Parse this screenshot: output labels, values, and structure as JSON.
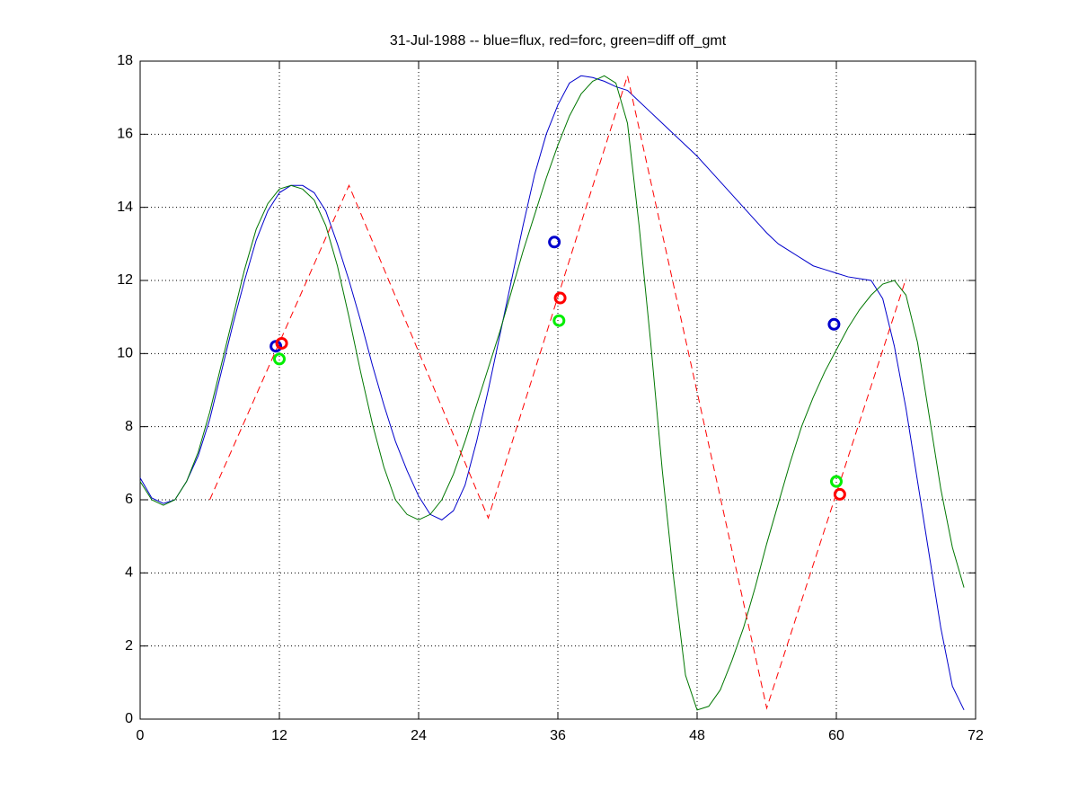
{
  "chart_data": {
    "type": "line",
    "title": "31-Jul-1988 -- blue=flux, red=forc, green=diff off_gmt",
    "xlim": [
      0,
      72
    ],
    "xticks": [
      0,
      12,
      24,
      36,
      48,
      60,
      72
    ],
    "ylim": [
      0,
      18
    ],
    "yticks": [
      0,
      2,
      4,
      6,
      8,
      10,
      12,
      14,
      16,
      18
    ],
    "grid": true,
    "series": [
      {
        "color": "#0000cc",
        "style": "solid",
        "x": [
          0,
          1,
          2,
          3,
          4,
          5,
          6,
          7,
          8,
          9,
          10,
          11,
          12,
          13,
          14,
          15,
          16,
          17,
          18,
          19,
          20,
          21,
          22,
          23,
          24,
          25,
          26,
          27,
          28,
          29,
          30,
          31,
          32,
          33,
          34,
          35,
          36,
          37,
          38,
          39,
          40,
          41,
          42,
          43,
          44,
          45,
          46,
          47,
          48,
          49,
          50,
          51,
          52,
          53,
          54,
          55,
          56,
          57,
          58,
          59,
          60,
          61,
          62,
          63,
          64,
          65,
          66,
          67,
          68,
          69,
          70,
          71
        ],
        "values": [
          6.6,
          6.05,
          5.9,
          6.0,
          6.5,
          7.2,
          8.2,
          9.5,
          10.8,
          12.0,
          13.1,
          13.9,
          14.4,
          14.6,
          14.6,
          14.4,
          13.9,
          13.0,
          12.0,
          10.9,
          9.7,
          8.6,
          7.6,
          6.8,
          6.1,
          5.6,
          5.45,
          5.7,
          6.4,
          7.6,
          9.0,
          10.5,
          12.0,
          13.5,
          14.9,
          16.0,
          16.8,
          17.4,
          17.6,
          17.55,
          17.45,
          17.3,
          17.2,
          16.9,
          16.6,
          16.3,
          16.0,
          15.7,
          15.4,
          15.05,
          14.7,
          14.35,
          14.0,
          13.65,
          13.3,
          13.0,
          12.8,
          12.6,
          12.4,
          12.3,
          12.2,
          12.1,
          12.05,
          12.0,
          11.5,
          10.2,
          8.5,
          6.5,
          4.5,
          2.5,
          0.9,
          0.25
        ]
      },
      {
        "color": "#007700",
        "style": "solid",
        "x": [
          0,
          1,
          2,
          3,
          4,
          5,
          6,
          7,
          8,
          9,
          10,
          11,
          12,
          13,
          14,
          15,
          16,
          17,
          18,
          19,
          20,
          21,
          22,
          23,
          24,
          25,
          26,
          27,
          28,
          29,
          30,
          31,
          32,
          33,
          34,
          35,
          36,
          37,
          38,
          39,
          40,
          41,
          42,
          43,
          44,
          45,
          46,
          47,
          48,
          49,
          50,
          51,
          52,
          53,
          54,
          55,
          56,
          57,
          58,
          59,
          60,
          61,
          62,
          63,
          64,
          65,
          66,
          67,
          68,
          69,
          70,
          71
        ],
        "values": [
          6.5,
          6.0,
          5.85,
          6.0,
          6.5,
          7.3,
          8.4,
          9.7,
          11.0,
          12.3,
          13.4,
          14.1,
          14.5,
          14.6,
          14.5,
          14.2,
          13.5,
          12.4,
          11.0,
          9.5,
          8.1,
          6.9,
          6.0,
          5.6,
          5.45,
          5.6,
          6.0,
          6.7,
          7.6,
          8.6,
          9.6,
          10.6,
          11.7,
          12.8,
          13.8,
          14.8,
          15.7,
          16.5,
          17.1,
          17.45,
          17.6,
          17.4,
          16.3,
          13.5,
          10.3,
          6.8,
          3.8,
          1.2,
          0.25,
          0.35,
          0.8,
          1.6,
          2.5,
          3.6,
          4.8,
          5.9,
          7.0,
          8.0,
          8.8,
          9.5,
          10.1,
          10.7,
          11.2,
          11.6,
          11.9,
          12.0,
          11.6,
          10.3,
          8.3,
          6.3,
          4.7,
          3.6
        ]
      },
      {
        "color": "#ff0000",
        "style": "dashed",
        "x": [
          6,
          18,
          30,
          42,
          54,
          66
        ],
        "values": [
          6.0,
          14.6,
          5.5,
          17.6,
          0.3,
          12.05
        ]
      },
      {
        "color": "#0000cc",
        "style": "circle",
        "x": [
          11.7,
          35.7,
          59.8
        ],
        "values": [
          10.2,
          13.05,
          10.8
        ]
      },
      {
        "color": "#ff0000",
        "style": "circle",
        "x": [
          12.2,
          36.2,
          60.3
        ],
        "values": [
          10.28,
          11.52,
          6.15
        ]
      },
      {
        "color": "#00ee00",
        "style": "circle",
        "x": [
          12.0,
          36.1,
          60.0
        ],
        "values": [
          9.85,
          10.9,
          6.5
        ]
      }
    ]
  }
}
